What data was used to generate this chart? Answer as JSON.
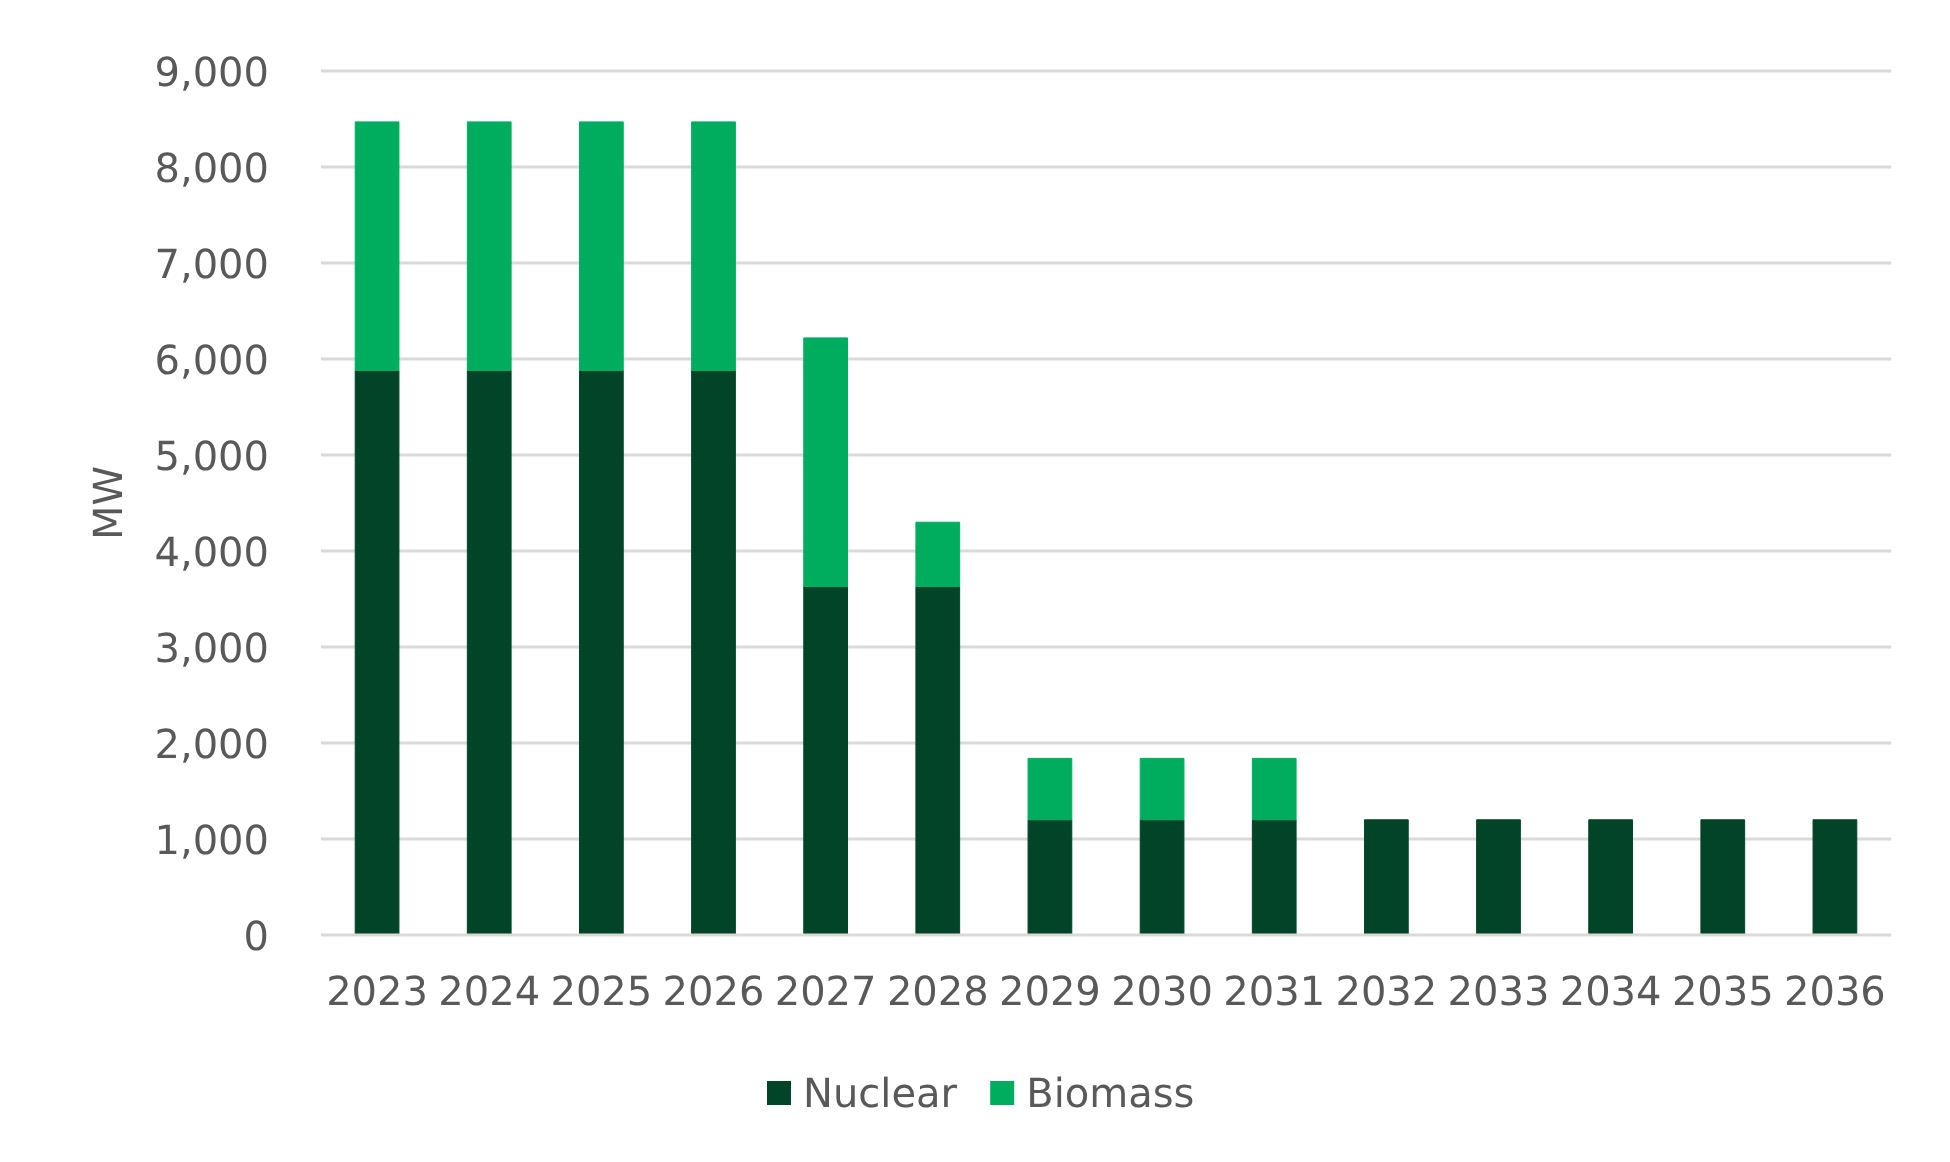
{
  "chart_data": {
    "type": "bar",
    "stacked": true,
    "ylabel": "MW",
    "categories": [
      "2023",
      "2024",
      "2025",
      "2026",
      "2027",
      "2028",
      "2029",
      "2030",
      "2031",
      "2032",
      "2033",
      "2034",
      "2035",
      "2036"
    ],
    "series": [
      {
        "name": "Nuclear",
        "color": "#024427",
        "values": [
          5880,
          5880,
          5880,
          5880,
          3630,
          3630,
          1200,
          1200,
          1200,
          1200,
          1200,
          1200,
          1200,
          1200
        ]
      },
      {
        "name": "Biomass",
        "color": "#00ad5f",
        "values": [
          2590,
          2590,
          2590,
          2590,
          2590,
          670,
          640,
          640,
          640,
          null,
          null,
          null,
          null,
          null
        ]
      }
    ],
    "ylim": [
      0,
      9000
    ],
    "yticks": [
      {
        "value": 0,
        "label": "0"
      },
      {
        "value": 1000,
        "label": "1,000"
      },
      {
        "value": 2000,
        "label": "2,000"
      },
      {
        "value": 3000,
        "label": "3,000"
      },
      {
        "value": 4000,
        "label": "4,000"
      },
      {
        "value": 5000,
        "label": "5,000"
      },
      {
        "value": 6000,
        "label": "6,000"
      },
      {
        "value": 7000,
        "label": "7,000"
      },
      {
        "value": 8000,
        "label": "8,000"
      },
      {
        "value": 9000,
        "label": "9,000"
      }
    ],
    "grid": "y",
    "legend": "bottom"
  }
}
